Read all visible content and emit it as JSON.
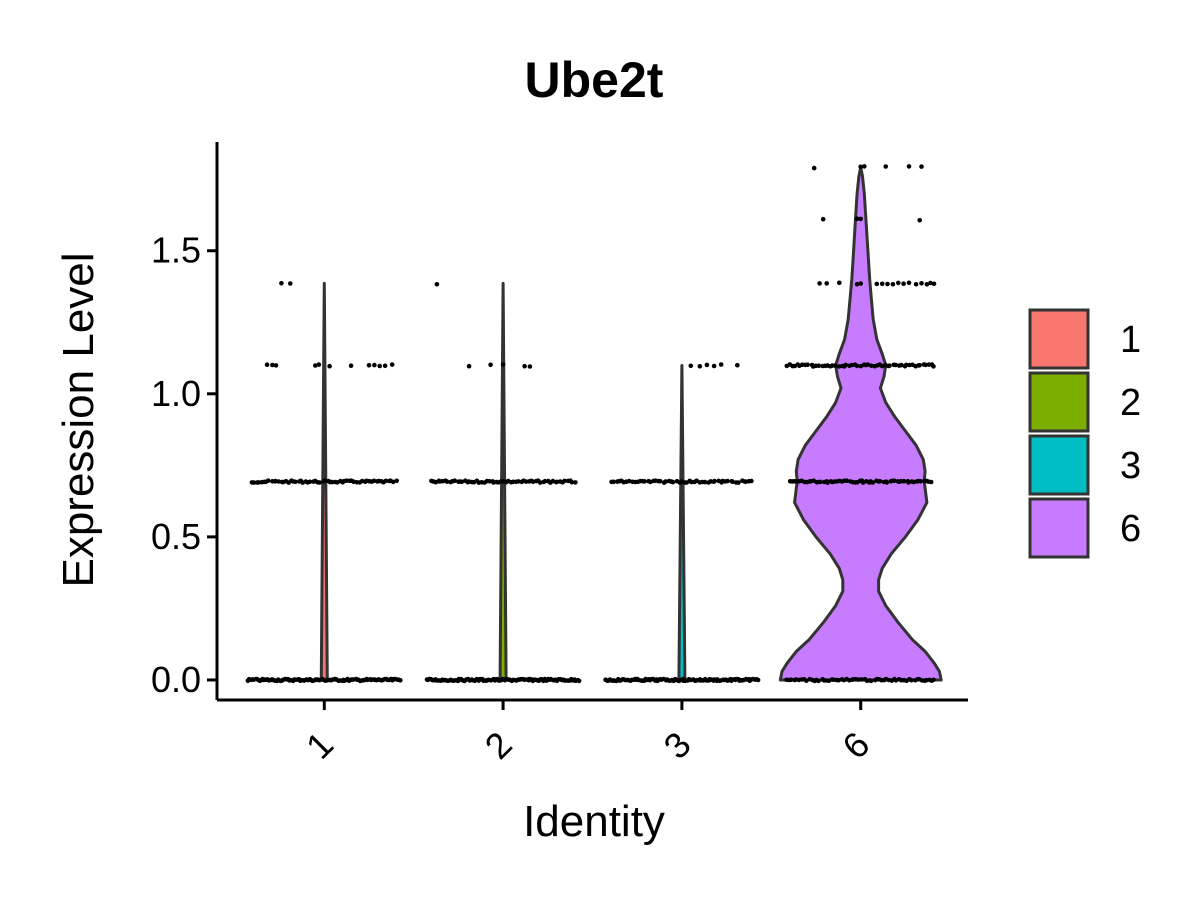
{
  "chart_data": {
    "type": "violin",
    "title": "Ube2t",
    "xlabel": "Identity",
    "ylabel": "Expression Level",
    "categories": [
      "1",
      "2",
      "3",
      "6"
    ],
    "colors": [
      "#F8766D",
      "#7CAE00",
      "#00BFC4",
      "#C77CFF"
    ],
    "ylim": [
      -0.07,
      1.88
    ],
    "yticks": [
      0.0,
      0.5,
      1.0,
      1.5
    ],
    "ytick_labels": [
      "0.0",
      "0.5",
      "1.0",
      "1.5"
    ],
    "legend": {
      "position": "right",
      "entries": [
        "1",
        "2",
        "3",
        "6"
      ]
    },
    "violins": [
      {
        "name": "1",
        "max": 1.386,
        "shape": "thin",
        "points": [
          {
            "y": 1.386,
            "x": [
              -0.24,
              -0.19
            ]
          },
          {
            "y": 1.099,
            "x": [
              -0.32,
              -0.29,
              -0.27,
              -0.05,
              -0.03,
              0.03,
              0.15,
              0.25,
              0.28,
              0.31,
              0.34,
              0.38
            ]
          },
          {
            "y": 0.693,
            "spread": 0.41,
            "count": 60
          },
          {
            "y": 0.0,
            "spread": 0.43,
            "count": 100
          }
        ]
      },
      {
        "name": "2",
        "max": 1.386,
        "shape": "thin",
        "points": [
          {
            "y": 1.386,
            "x": [
              -0.37
            ]
          },
          {
            "y": 1.099,
            "x": [
              -0.19,
              -0.07,
              0.0,
              0.12,
              0.15
            ]
          },
          {
            "y": 0.693,
            "spread": 0.41,
            "count": 60
          },
          {
            "y": 0.0,
            "spread": 0.43,
            "count": 100
          }
        ]
      },
      {
        "name": "3",
        "max": 1.099,
        "shape": "thin",
        "points": [
          {
            "y": 1.099,
            "x": [
              0.05,
              0.1,
              0.14,
              0.18,
              0.22,
              0.31
            ]
          },
          {
            "y": 0.693,
            "spread": 0.4,
            "count": 55
          },
          {
            "y": 0.0,
            "spread": 0.43,
            "count": 100
          }
        ]
      },
      {
        "name": "6",
        "max": 1.792,
        "shape": "wide",
        "density": [
          [
            0.0,
            0.45
          ],
          [
            0.03,
            0.44
          ],
          [
            0.06,
            0.41
          ],
          [
            0.1,
            0.36
          ],
          [
            0.14,
            0.29
          ],
          [
            0.2,
            0.21
          ],
          [
            0.26,
            0.14
          ],
          [
            0.31,
            0.1
          ],
          [
            0.35,
            0.1
          ],
          [
            0.39,
            0.12
          ],
          [
            0.44,
            0.17
          ],
          [
            0.5,
            0.25
          ],
          [
            0.56,
            0.32
          ],
          [
            0.62,
            0.37
          ],
          [
            0.67,
            0.36
          ],
          [
            0.693,
            0.355
          ],
          [
            0.73,
            0.36
          ],
          [
            0.77,
            0.35
          ],
          [
            0.82,
            0.31
          ],
          [
            0.87,
            0.25
          ],
          [
            0.92,
            0.19
          ],
          [
            0.97,
            0.14
          ],
          [
            1.02,
            0.11
          ],
          [
            1.06,
            0.13
          ],
          [
            1.1,
            0.14
          ],
          [
            1.14,
            0.12
          ],
          [
            1.19,
            0.09
          ],
          [
            1.26,
            0.07
          ],
          [
            1.33,
            0.06
          ],
          [
            1.4,
            0.05
          ],
          [
            1.5,
            0.04
          ],
          [
            1.6,
            0.03
          ],
          [
            1.7,
            0.02
          ],
          [
            1.76,
            0.01
          ],
          [
            1.792,
            0.0
          ]
        ],
        "points": [
          {
            "y": 1.792,
            "x": [
              -0.26,
              0.0,
              0.02,
              0.14,
              0.27,
              0.34
            ]
          },
          {
            "y": 1.609,
            "x": [
              -0.21,
              -0.02,
              0.0,
              0.33
            ]
          },
          {
            "y": 1.386,
            "x": [
              -0.23,
              -0.19,
              -0.12,
              -0.02,
              0.0,
              0.09,
              0.12,
              0.15,
              0.18,
              0.21,
              0.24,
              0.27,
              0.31,
              0.34,
              0.37,
              0.39,
              0.41
            ]
          },
          {
            "y": 1.099,
            "spread": 0.42,
            "count": 55
          },
          {
            "y": 0.693,
            "spread": 0.4,
            "count": 60
          },
          {
            "y": 0.0,
            "spread": 0.42,
            "count": 60
          }
        ]
      }
    ]
  }
}
